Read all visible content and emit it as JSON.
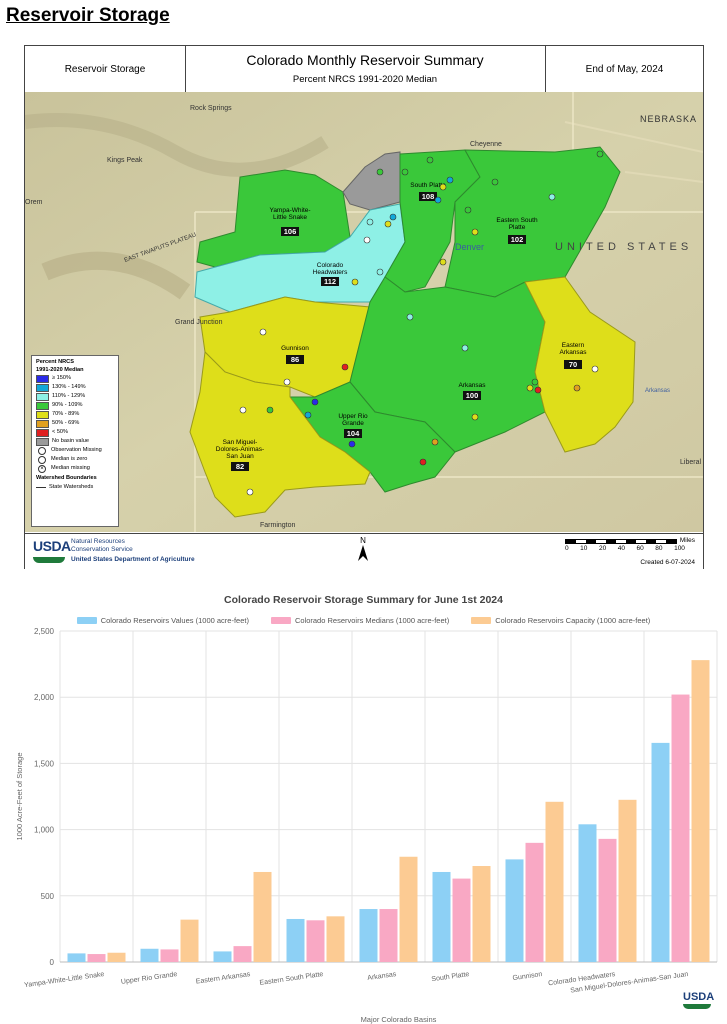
{
  "page": {
    "title": "Reservoir Storage"
  },
  "map": {
    "header_left": "Reservoir Storage",
    "title": "Colorado Monthly Reservoir Summary",
    "subtitle": "Percent NRCS 1991-2020 Median",
    "header_right": "End of May, 2024",
    "places": [
      "Rock Springs",
      "Cheyenne",
      "NEBRASKA",
      "Kings Peak",
      "Orem",
      "EAST TAVAPUTS PLATEAU",
      "Grand Junction",
      "Denver",
      "UNITED STATES",
      "Farmington",
      "Liberal",
      "Arkansas"
    ],
    "basins": [
      {
        "name": "Yampa-White-Little Snake",
        "value": "106"
      },
      {
        "name": "South Platte",
        "value": "108"
      },
      {
        "name": "Eastern South Platte",
        "value": "102"
      },
      {
        "name": "Colorado Headwaters",
        "value": "112"
      },
      {
        "name": "Gunnison",
        "value": "86"
      },
      {
        "name": "Eastern Arkansas",
        "value": "70"
      },
      {
        "name": "Arkansas",
        "value": "100"
      },
      {
        "name": "Upper Rio Grande",
        "value": "104"
      },
      {
        "name": "San Miguel-Dolores-Animas-San Juan",
        "value": "82"
      }
    ],
    "legend": {
      "title1": "Percent NRCS",
      "title2": "1991-2020 Median",
      "items": [
        {
          "label": "≥ 150%",
          "color": "#2a2ae8"
        },
        {
          "label": "130% - 149%",
          "color": "#12a8d8"
        },
        {
          "label": "110% - 129%",
          "color": "#8ef0e6"
        },
        {
          "label": "90% - 109%",
          "color": "#3ac83a"
        },
        {
          "label": "70% - 89%",
          "color": "#dede1a"
        },
        {
          "label": "50% - 69%",
          "color": "#e0a020"
        },
        {
          "label": "< 50%",
          "color": "#e02020"
        },
        {
          "label": "No basin value",
          "color": "#9a9a9a"
        }
      ],
      "obs_missing": "Observation Missing",
      "median_zero": "Median is zero",
      "median_missing": "Median missing",
      "boundaries_title": "Watershed Boundaries",
      "boundaries_item": "State Watersheds"
    },
    "footer": {
      "usda": "USDA",
      "nrcs1": "Natural Resources",
      "nrcs2": "Conservation Service",
      "dept": "United States Department of Agriculture",
      "north": "N",
      "scale_ticks": [
        "0",
        "10",
        "20",
        "40",
        "60",
        "80",
        "100"
      ],
      "scale_unit": "Miles",
      "created": "Created 6-07-2024"
    }
  },
  "chart_data": {
    "type": "bar",
    "title": "Colorado Reservoir Storage Summary for June 1st 2024",
    "xlabel": "Major Colorado Basins",
    "ylabel": "1000 Acre-Feet of Storage",
    "ylim": [
      0,
      2500
    ],
    "yticks": [
      "0",
      "500",
      "1,000",
      "1,500",
      "2,000",
      "2,500"
    ],
    "ytick_values": [
      0,
      500,
      1000,
      1500,
      2000,
      2500
    ],
    "categories": [
      "Yampa-White-Little Snake",
      "Upper Rio Grande",
      "Eastern Arkansas",
      "Eastern South Platte",
      "Arkansas",
      "South Platte",
      "Gunnison",
      "Colorado Headwaters",
      "San Miguel-Dolores-Animas-San Juan"
    ],
    "series": [
      {
        "name": "Colorado Reservoirs Values (1000 acre-feet)",
        "color": "#8dd0f5",
        "values": [
          65,
          100,
          80,
          325,
          400,
          680,
          775,
          1040,
          1655
        ]
      },
      {
        "name": "Colorado Reservoirs Medians (1000 acre-feet)",
        "color": "#f9a8c4",
        "values": [
          60,
          95,
          120,
          315,
          400,
          630,
          900,
          930,
          2020
        ]
      },
      {
        "name": "Colorado Reservoirs Capacity (1000 acre-feet)",
        "color": "#fccb93",
        "values": [
          70,
          320,
          680,
          345,
          795,
          725,
          1210,
          1225,
          2280
        ]
      }
    ],
    "grid": true,
    "legend_position": "top"
  },
  "footer": {
    "usda": "USDA"
  }
}
